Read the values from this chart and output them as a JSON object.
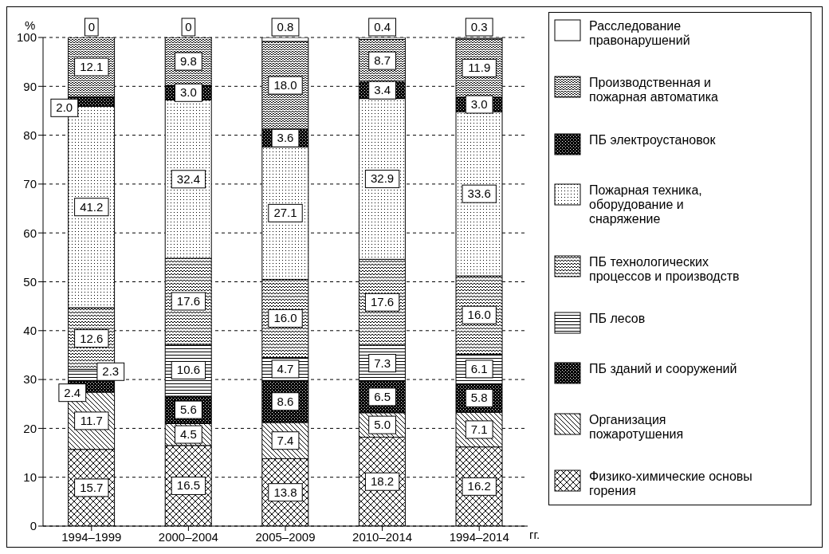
{
  "chart_data": {
    "type": "bar",
    "stacked": true,
    "ylabel": "%",
    "xlabel": "гг.",
    "categories": [
      "1994–1999",
      "2000–2004",
      "2005–2009",
      "2010–2014",
      "1994–2014"
    ],
    "ylim": [
      0,
      100
    ],
    "yticks": [
      0,
      10,
      20,
      30,
      40,
      50,
      60,
      70,
      80,
      90,
      100
    ],
    "grid": "y",
    "legend": "right",
    "series": [
      {
        "name": "Физико-химические основы горения",
        "color": "#000000",
        "values": [
          15.7,
          16.5,
          13.8,
          18.2,
          16.2
        ],
        "value_labels": [
          "15.7",
          "16.5",
          "13.8",
          "18.2",
          "16.2"
        ]
      },
      {
        "name": "Организация пожаротушения",
        "color": "#000000",
        "values": [
          11.7,
          4.5,
          7.4,
          5.0,
          7.1
        ],
        "value_labels": [
          "11.7",
          "4.5",
          "7.4",
          "5.0",
          "7.1"
        ]
      },
      {
        "name": "ПБ зданий и сооружений",
        "color": "#000000",
        "values": [
          2.4,
          5.6,
          8.6,
          6.5,
          5.8
        ],
        "value_labels": [
          "2.4",
          "5.6",
          "8.6",
          "6.5",
          "5.8"
        ]
      },
      {
        "name": "ПБ лесов",
        "color": "#000000",
        "values": [
          2.3,
          10.6,
          4.7,
          7.3,
          6.1
        ],
        "value_labels": [
          "2.3",
          "10.6",
          "4.7",
          "7.3",
          "6.1"
        ]
      },
      {
        "name": "ПБ технологических процессов и производств",
        "color": "#000000",
        "values": [
          12.6,
          17.6,
          16.0,
          17.6,
          16.0
        ],
        "value_labels": [
          "12.6",
          "17.6",
          "16.0",
          "17.6",
          "16.0"
        ]
      },
      {
        "name": "Пожарная техника, оборудование и снаряжение",
        "color": "#000000",
        "values": [
          41.2,
          32.4,
          27.1,
          32.9,
          33.6
        ],
        "value_labels": [
          "41.2",
          "32.4",
          "27.1",
          "32.9",
          "33.6"
        ]
      },
      {
        "name": "ПБ электроустановок",
        "color": "#000000",
        "values": [
          2.0,
          3.0,
          3.6,
          3.4,
          3.0
        ],
        "value_labels": [
          "2.0",
          "3.0",
          "3.6",
          "3.4",
          "3.0"
        ]
      },
      {
        "name": "Производственная и пожарная автоматика",
        "color": "#000000",
        "values": [
          12.1,
          9.8,
          18.0,
          8.7,
          11.9
        ],
        "value_labels": [
          "12.1",
          "9.8",
          "18.0",
          "8.7",
          "11.9"
        ]
      },
      {
        "name": "Расследование правонарушений",
        "color": "#000000",
        "values": [
          0,
          0,
          0.8,
          0.4,
          0.3
        ],
        "value_labels": [
          "0",
          "0",
          "0.8",
          "0.4",
          "0.3"
        ]
      }
    ]
  }
}
